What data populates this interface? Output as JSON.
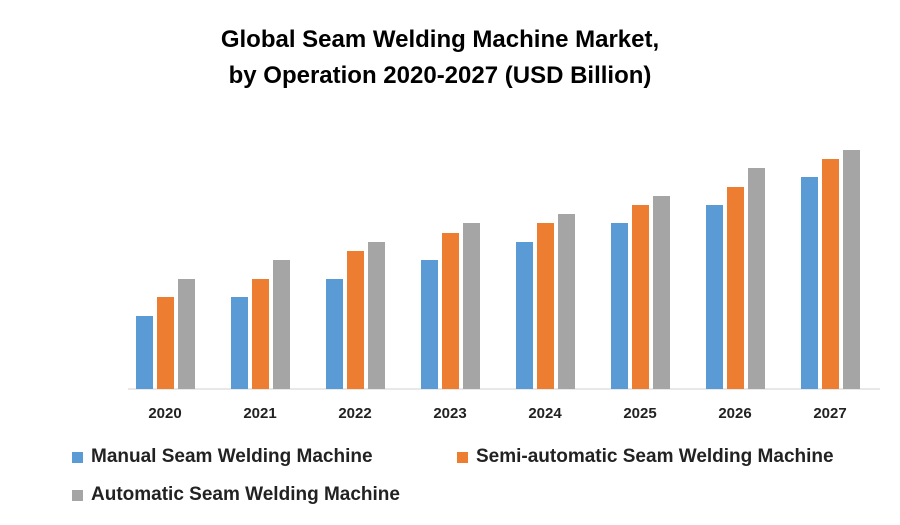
{
  "chart_data": {
    "type": "bar",
    "title_line1": "Global Seam Welding Machine Market,",
    "title_line2": "by Operation 2020-2027 (USD Billion)",
    "categories": [
      "2020",
      "2021",
      "2022",
      "2023",
      "2024",
      "2025",
      "2026",
      "2027"
    ],
    "series": [
      {
        "name": "Manual Seam Welding Machine",
        "color": "#5B9BD5",
        "values": [
          73,
          92,
          110,
          129,
          147,
          166,
          184,
          212
        ]
      },
      {
        "name": "Semi-automatic Seam Welding Machine",
        "color": "#ED7D31",
        "values": [
          92,
          110,
          138,
          156,
          166,
          184,
          202,
          230
        ]
      },
      {
        "name": "Automatic Seam Welding Machine",
        "color": "#A5A5A5",
        "values": [
          110,
          129,
          147,
          166,
          175,
          193,
          221,
          239
        ]
      }
    ],
    "xlabel": "",
    "ylabel": "",
    "y_axis_shown": false,
    "grid": false,
    "legend_position": "bottom"
  }
}
